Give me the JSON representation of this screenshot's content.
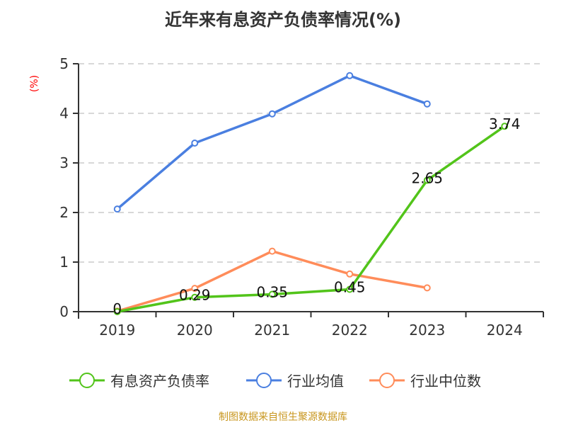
{
  "chart_data": {
    "type": "line",
    "title": "近年来有息资产负债率情况(%)",
    "ylabel": "(%)",
    "xlabel": "",
    "categories": [
      "2019",
      "2020",
      "2021",
      "2022",
      "2023",
      "2024"
    ],
    "ylim": [
      0,
      5
    ],
    "yticks": [
      0,
      1,
      2,
      3,
      4,
      5
    ],
    "grid": true,
    "legend_position": "bottom",
    "series": [
      {
        "name": "有息资产负债率",
        "color": "#52c41a",
        "values": [
          0,
          0.29,
          0.35,
          0.45,
          2.65,
          3.74
        ],
        "labels": [
          "0",
          "0.29",
          "0.35",
          "0.45",
          "2.65",
          "3.74"
        ]
      },
      {
        "name": "行业均值",
        "color": "#4a7fe0",
        "values": [
          2.07,
          3.4,
          3.99,
          4.76,
          4.19,
          null
        ]
      },
      {
        "name": "行业中位数",
        "color": "#ff8c5a",
        "values": [
          0.01,
          0.47,
          1.22,
          0.76,
          0.48,
          null
        ]
      }
    ]
  },
  "source": "制图数据来自恒生聚源数据库"
}
